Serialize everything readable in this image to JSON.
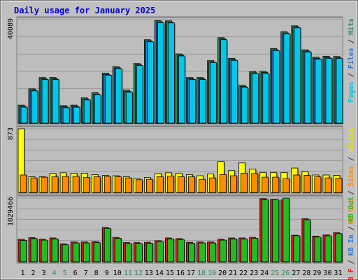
{
  "chart_data": {
    "type": "bar",
    "title": "Daily usage for January 2025",
    "categories": [
      "1",
      "2",
      "3",
      "4",
      "5",
      "6",
      "7",
      "8",
      "9",
      "10",
      "11",
      "12",
      "13",
      "14",
      "15",
      "16",
      "17",
      "18",
      "19",
      "20",
      "21",
      "22",
      "23",
      "24",
      "25",
      "26",
      "27",
      "28",
      "29",
      "30",
      "31"
    ],
    "weekend_days": [
      4,
      5,
      11,
      12,
      18,
      19,
      25,
      26
    ],
    "panels": [
      {
        "id": "top",
        "ymax": 40089,
        "ymax_label": "40089",
        "side_labels": [
          {
            "text": "Pages",
            "color": "#00c8e6"
          },
          {
            "text": " / ",
            "color": "#333333"
          },
          {
            "text": "Files",
            "color": "#2f7bd4"
          },
          {
            "text": " / ",
            "color": "#333333"
          },
          {
            "text": "Hits",
            "color": "#2e8b57"
          }
        ],
        "series": [
          {
            "name": "Hits",
            "color": "#2e8b57",
            "values": [
              7000,
              13300,
              17700,
              17700,
              6800,
              7000,
              9800,
              11800,
              19400,
              21900,
              12800,
              23100,
              32300,
              39700,
              39600,
              26800,
              17700,
              17700,
              24200,
              33100,
              25100,
              14700,
              20000,
              20100,
              28900,
              35400,
              37700,
              28400,
              25600,
              25900,
              25800
            ]
          },
          {
            "name": "Files",
            "color": "#2f7bd4",
            "values": [
              6500,
              12800,
              17200,
              17200,
              6300,
              6500,
              9300,
              11300,
              18900,
              21400,
              12300,
              22600,
              31800,
              39200,
              39100,
              26300,
              17200,
              17200,
              23700,
              32600,
              24600,
              14200,
              19500,
              19600,
              28400,
              34900,
              37200,
              27900,
              25100,
              25400,
              25300
            ]
          },
          {
            "name": "Pages",
            "color": "#00c8e6",
            "values": [
              6200,
              12500,
              16900,
              16900,
              6000,
              6200,
              9000,
              11000,
              18600,
              21100,
              12000,
              22300,
              31500,
              38900,
              38800,
              26000,
              16900,
              16900,
              23400,
              32300,
              24300,
              13900,
              19200,
              19300,
              28100,
              34600,
              36900,
              27600,
              24800,
              25100,
              25000
            ]
          }
        ]
      },
      {
        "id": "middle",
        "ymax": 873,
        "ymax_label": "873",
        "side_labels": [
          {
            "text": "KB Out",
            "color": "#ff8c00"
          },
          {
            "text": " / ",
            "color": "#333333"
          },
          {
            "text": "Sites",
            "color": "#ff8c00"
          },
          {
            "text": " / ",
            "color": "#333333"
          },
          {
            "text": "Visits",
            "color": "#e6e600"
          }
        ],
        "series": [
          {
            "name": "Visits",
            "color": "#ffff00",
            "values": [
              873,
              215,
              215,
              260,
              270,
              265,
              265,
              245,
              235,
              230,
              215,
              190,
              205,
              260,
              270,
              265,
              245,
              230,
              255,
              425,
              300,
              405,
              320,
              275,
              275,
              275,
              335,
              285,
              240,
              240,
              235
            ]
          },
          {
            "name": "Sites",
            "color": "#ff8c00",
            "values": [
              240,
              200,
              210,
              215,
              220,
              220,
              205,
              215,
              220,
              215,
              200,
              175,
              180,
              215,
              225,
              215,
              215,
              180,
              200,
              245,
              230,
              265,
              260,
              210,
              210,
              190,
              240,
              235,
              215,
              200,
              195
            ]
          }
        ]
      },
      {
        "id": "bottom",
        "ymax": 1029466,
        "ymax_label": "1029466",
        "side_labels": [
          {
            "text": "KB F",
            "color": "#e01919"
          },
          {
            "text": " / ",
            "color": "#333333"
          },
          {
            "text": "KB In",
            "color": "#2f7bd4"
          },
          {
            "text": " / ",
            "color": "#333333"
          },
          {
            "text": "KB Out",
            "color": "#22bb22"
          }
        ],
        "series": [
          {
            "name": "KB F",
            "color": "#e01919",
            "values": [
              365000,
              390000,
              365000,
              385000,
              290000,
              320000,
              320000,
              325000,
              555000,
              395000,
              310000,
              310000,
              315000,
              340000,
              385000,
              375000,
              315000,
              320000,
              320000,
              365000,
              385000,
              385000,
              395000,
              1020000,
              1010000,
              1000000,
              430000,
              695000,
              415000,
              435000,
              470000
            ]
          },
          {
            "name": "KB Out",
            "color": "#22bb22",
            "values": [
              345000,
              375000,
              350000,
              370000,
              275000,
              305000,
              305000,
              310000,
              540000,
              380000,
              295000,
              295000,
              300000,
              325000,
              370000,
              360000,
              300000,
              305000,
              305000,
              350000,
              370000,
              370000,
              380000,
              1000000,
              1005000,
              1029466,
              420000,
              680000,
              400000,
              420000,
              455000
            ]
          }
        ]
      }
    ]
  }
}
